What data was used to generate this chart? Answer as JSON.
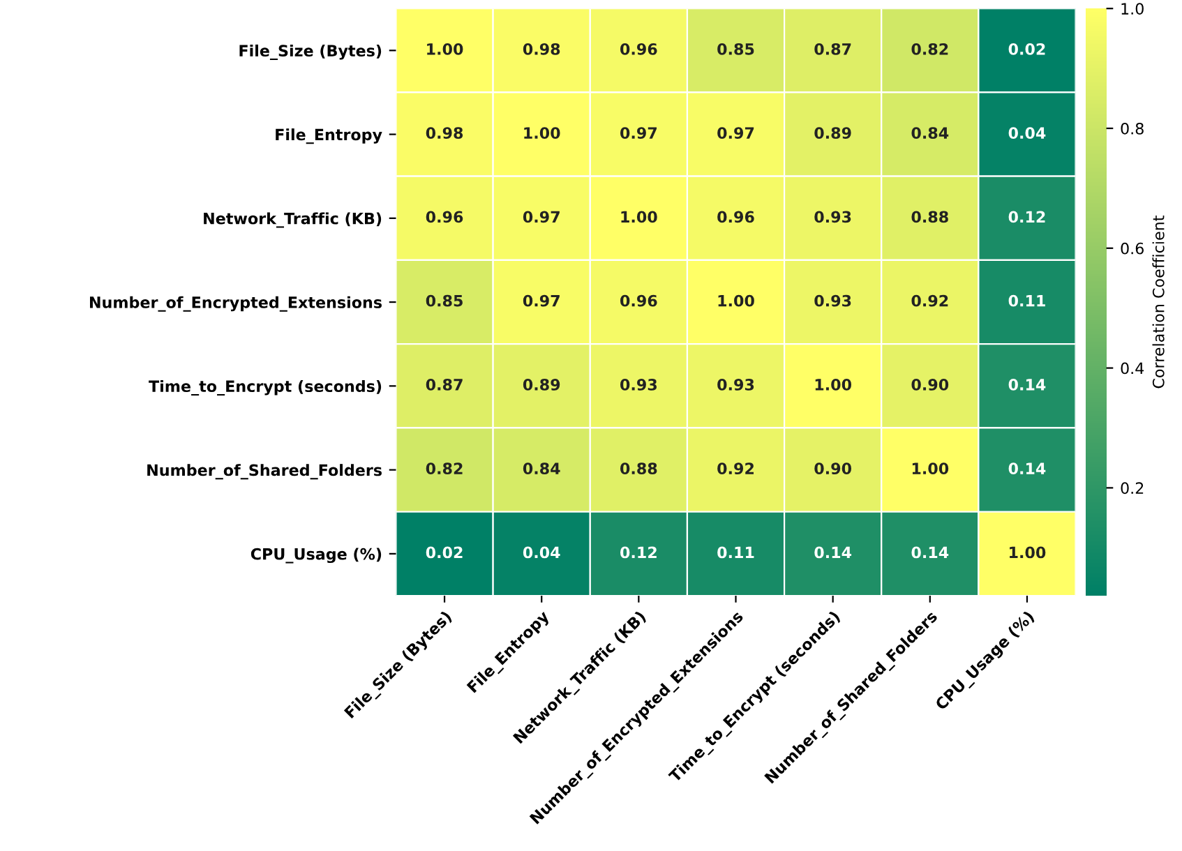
{
  "chart_data": {
    "type": "heatmap",
    "categories": [
      "File_Size (Bytes)",
      "File_Entropy",
      "Network_Traffic (KB)",
      "Number_of_Encrypted_Extensions",
      "Time_to_Encrypt (seconds)",
      "Number_of_Shared_Folders",
      "CPU_Usage (%)"
    ],
    "y_categories": [
      "File_Size (Bytes)",
      "File_Entropy",
      "Network_Traffic (KB)",
      "Number_of_Encrypted_Extensions",
      "Time_to_Encrypt (seconds)",
      "Number_of_Shared_Folders",
      "CPU_Usage (%)"
    ],
    "cells": [
      [
        1.0,
        0.98,
        0.96,
        0.85,
        0.87,
        0.82,
        0.02
      ],
      [
        0.98,
        1.0,
        0.97,
        0.97,
        0.89,
        0.84,
        0.04
      ],
      [
        0.96,
        0.97,
        1.0,
        0.96,
        0.93,
        0.88,
        0.12
      ],
      [
        0.85,
        0.97,
        0.96,
        1.0,
        0.93,
        0.92,
        0.11
      ],
      [
        0.87,
        0.89,
        0.93,
        0.93,
        1.0,
        0.9,
        0.14
      ],
      [
        0.82,
        0.84,
        0.88,
        0.92,
        0.9,
        1.0,
        0.14
      ],
      [
        0.02,
        0.04,
        0.12,
        0.11,
        0.14,
        0.14,
        1.0
      ]
    ],
    "cell_labels": [
      [
        "1.00",
        "0.98",
        "0.96",
        "0.85",
        "0.87",
        "0.82",
        "0.02"
      ],
      [
        "0.98",
        "1.00",
        "0.97",
        "0.97",
        "0.89",
        "0.84",
        "0.04"
      ],
      [
        "0.96",
        "0.97",
        "1.00",
        "0.96",
        "0.93",
        "0.88",
        "0.12"
      ],
      [
        "0.85",
        "0.97",
        "0.96",
        "1.00",
        "0.93",
        "0.92",
        "0.11"
      ],
      [
        "0.87",
        "0.89",
        "0.93",
        "0.93",
        "1.00",
        "0.90",
        "0.14"
      ],
      [
        "0.82",
        "0.84",
        "0.88",
        "0.92",
        "0.90",
        "1.00",
        "0.14"
      ],
      [
        "0.02",
        "0.04",
        "0.12",
        "0.11",
        "0.14",
        "0.14",
        "1.00"
      ]
    ],
    "clim": [
      0.02,
      1.0
    ],
    "cticks": [
      {
        "value": 0.2,
        "label": "0.2"
      },
      {
        "value": 0.4,
        "label": "0.4"
      },
      {
        "value": 0.6,
        "label": "0.6"
      },
      {
        "value": 0.8,
        "label": "0.8"
      },
      {
        "value": 1.0,
        "label": "1.0"
      }
    ],
    "clabel": "Correlation Coefficient"
  }
}
